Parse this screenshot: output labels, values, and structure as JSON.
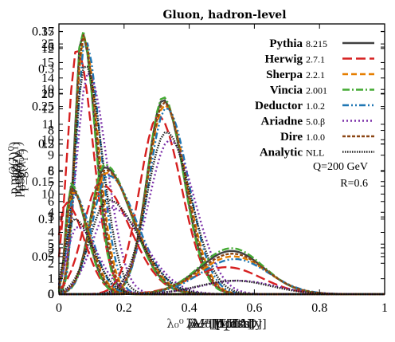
{
  "chart_data": {
    "type": "line",
    "title": "Gluon, hadron-level",
    "xlabel": "λ₀⁰ [Multiplicity]",
    "xlabels_overlaid": [
      "λ₀⁰ [Multiplicity]",
      "λ₀.₅¹ [LHA]",
      "λ₁¹ [Width]",
      "λ₂¹ [Mass]",
      "λ₀² [p_T^D]"
    ],
    "ylabel": "p_g(λ₀⁰)",
    "ylabels_overlaid": [
      "p_g(λ₀⁰)",
      "p_g(λ₀.₅¹)",
      "p_g(λ₁¹)",
      "p_g(λ₂¹)",
      "p_g(λ₀²)"
    ],
    "xlim": [
      0,
      1
    ],
    "x_ticks": [
      "0",
      "0.2",
      "0.4",
      "0.6",
      "0.8",
      "1"
    ],
    "y_tick_sets": [
      [
        "0",
        "0.05",
        "0.1",
        "0.15",
        "0.2",
        "0.25",
        "0.3",
        "0.35"
      ],
      [
        "0",
        "1",
        "2",
        "3",
        "4",
        "5",
        "6",
        "7",
        "8",
        "9",
        "10",
        "11",
        "12",
        "13",
        "14",
        "15",
        "16",
        "17"
      ],
      [
        "0",
        "5",
        "10",
        "15",
        "20",
        "25"
      ],
      [
        "0",
        "2",
        "4",
        "6",
        "8",
        "10",
        "12"
      ]
    ],
    "legend_position": "top-right",
    "series": [
      {
        "name": "Pythia",
        "version": "8.215",
        "color": "#404040",
        "dash": "solid"
      },
      {
        "name": "Herwig",
        "version": "2.7.1",
        "color": "#d62020",
        "dash": "long-dash"
      },
      {
        "name": "Sherpa",
        "version": "2.2.1",
        "color": "#e67e00",
        "dash": "dash"
      },
      {
        "name": "Vincia",
        "version": "2.001",
        "color": "#44aa33",
        "dash": "dash-dot"
      },
      {
        "name": "Deductor",
        "version": "1.0.2",
        "color": "#1f77b4",
        "dash": "dash-dot-dot"
      },
      {
        "name": "Ariadne",
        "version": "5.0.β",
        "color": "#7b2fa8",
        "dash": "dot"
      },
      {
        "name": "Dire",
        "version": "1.0.0",
        "color": "#8b4513",
        "dash": "dense-dash"
      },
      {
        "name": "Analytic",
        "version": "NLL",
        "color": "#222222",
        "dash": "fine-dot"
      }
    ],
    "annotations": [
      "Q=200 GeV",
      "R=0.6"
    ]
  }
}
